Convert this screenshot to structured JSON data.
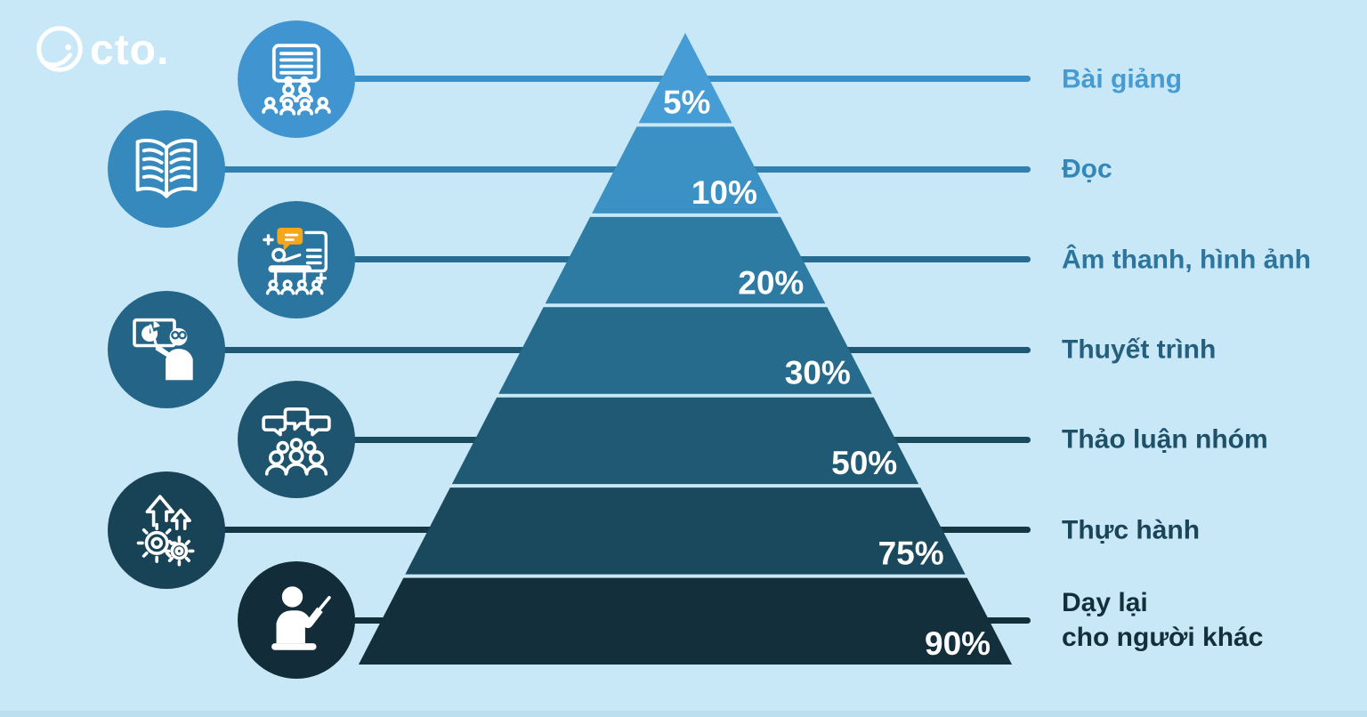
{
  "logo": {
    "brand": "Octo.",
    "suffix": "cto.",
    "color": "#FFFFFF"
  },
  "background": {
    "color": "#C9E8F7",
    "bottom_strip_color": "#BBDFEE",
    "segment_gap_color": "#D9F0FB"
  },
  "pyramid": {
    "percent_text_color": "#FFFFFF",
    "levels": [
      {
        "percent": "5%",
        "label": "Bài giảng",
        "label_lines": [
          "Bài giảng"
        ],
        "icon": "lecture-icon",
        "segment_color": "#469CD4",
        "circle_color": "#4094D0",
        "line_color": "#3B8FC6",
        "label_color": "#459BD2"
      },
      {
        "percent": "10%",
        "label": "Đọc",
        "label_lines": [
          "Đọc"
        ],
        "icon": "book-icon",
        "segment_color": "#3B90C4",
        "circle_color": "#3689BD",
        "line_color": "#2F7FAF",
        "label_color": "#3487B9"
      },
      {
        "percent": "20%",
        "label": "Âm thanh, hình ảnh",
        "label_lines": [
          "Âm thanh, hình ảnh"
        ],
        "icon": "audio-visual-icon",
        "segment_color": "#2D7AA3",
        "circle_color": "#2B76A0",
        "line_color": "#266C92",
        "label_color": "#2C759C"
      },
      {
        "percent": "30%",
        "label": "Thuyết trình",
        "label_lines": [
          "Thuyết trình"
        ],
        "icon": "demonstration-icon",
        "segment_color": "#266A8C",
        "circle_color": "#246486",
        "line_color": "#1F5873",
        "label_color": "#245F7E"
      },
      {
        "percent": "50%",
        "label": "Thảo luận nhóm",
        "label_lines": [
          "Thảo luận nhóm"
        ],
        "icon": "discussion-icon",
        "segment_color": "#205973",
        "circle_color": "#1F546E",
        "line_color": "#1A4A5E",
        "label_color": "#1E5068"
      },
      {
        "percent": "75%",
        "label": "Thực hành",
        "label_lines": [
          "Thực hành"
        ],
        "icon": "practice-icon",
        "segment_color": "#1A485D",
        "circle_color": "#184256",
        "line_color": "#143744",
        "label_color": "#1A4457"
      },
      {
        "percent": "90%",
        "label": "Dạy lại cho người khác",
        "label_lines": [
          "Dạy lại",
          "cho người khác"
        ],
        "icon": "teach-icon",
        "segment_color": "#142F3C",
        "circle_color": "#122C39",
        "line_color": "#132E3B",
        "label_color": "#142F3C"
      }
    ]
  },
  "chart_data": {
    "type": "pyramid",
    "title": "",
    "categories": [
      "Bài giảng",
      "Đọc",
      "Âm thanh, hình ảnh",
      "Thuyết trình",
      "Thảo luận nhóm",
      "Thực hành",
      "Dạy lại cho người khác"
    ],
    "values": [
      5,
      10,
      20,
      30,
      50,
      75,
      90
    ],
    "unit": "%",
    "value_labels": [
      "5%",
      "10%",
      "20%",
      "30%",
      "50%",
      "75%",
      "90%"
    ],
    "orientation": "apex_top_values_increase_downward",
    "legend_position": "right",
    "notes": "Seven-level learning pyramid; each level has an icon badge on the left connected by a horizontal line to a label on the right; percentage shown inside each pyramid band."
  }
}
